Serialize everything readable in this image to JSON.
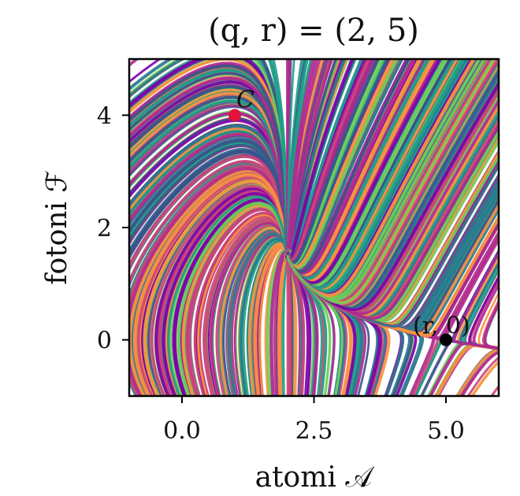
{
  "chart_data": {
    "type": "streamplot",
    "title": "(q, r) = (2, 5)",
    "xlabel": "atomi 𝒜",
    "ylabel": "fotoni ℱ",
    "xlim": [
      -1,
      6
    ],
    "ylim": [
      -1,
      5
    ],
    "xticks": [
      0.0,
      2.5,
      5.0
    ],
    "xtick_labels": [
      "0.0",
      "2.5",
      "5.0"
    ],
    "yticks": [
      0,
      2,
      4
    ],
    "ytick_labels": [
      "0",
      "2",
      "4"
    ],
    "params": {
      "q": 2,
      "r": 5
    },
    "grid": false,
    "colormap": [
      "#1f9e89",
      "#3b528b",
      "#7e03a8",
      "#cc4778",
      "#f89540",
      "#6ece58",
      "#2a788e",
      "#b12a90"
    ],
    "points": [
      {
        "label": "C",
        "x": 1,
        "y": 4,
        "color": "#e0143c"
      },
      {
        "label": "(r, 0)",
        "x": 5,
        "y": 0,
        "color": "#000000"
      }
    ]
  }
}
